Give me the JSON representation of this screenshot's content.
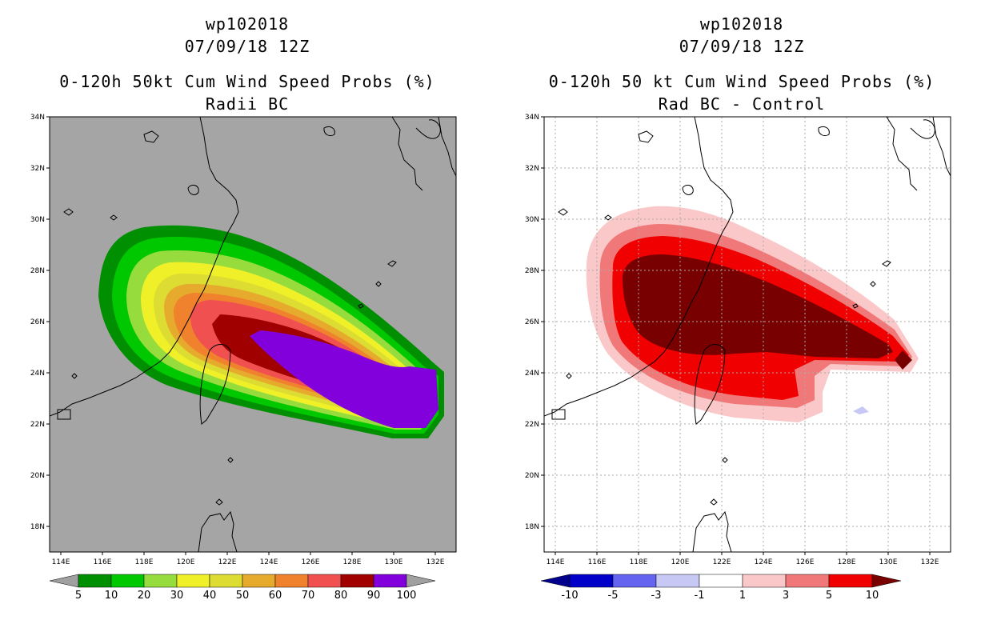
{
  "panels": [
    {
      "id": "left",
      "storm_id": "wp102018",
      "datetime": "07/09/18 12Z",
      "title": "0-120h 50kt Cum Wind Speed Probs (%)",
      "subtitle": "Radii BC",
      "lat_labels": [
        "34N",
        "32N",
        "30N",
        "28N",
        "26N",
        "24N",
        "22N",
        "20N",
        "18N"
      ],
      "lon_labels": [
        "114E",
        "116E",
        "118E",
        "120E",
        "122E",
        "124E",
        "126E",
        "128E",
        "130E",
        "132E"
      ],
      "colorbar": {
        "colors": [
          "#008f00",
          "#00c800",
          "#96dc3c",
          "#f0f028",
          "#dcdc32",
          "#e6aa2d",
          "#f0822d",
          "#f05050",
          "#a00000",
          "#8200dc"
        ],
        "labels": [
          "5",
          "10",
          "20",
          "30",
          "40",
          "50",
          "60",
          "70",
          "80",
          "90",
          "100"
        ],
        "end_low": "#a0a0a0",
        "end_high": "#a0a0a0"
      }
    },
    {
      "id": "right",
      "storm_id": "wp102018",
      "datetime": "07/09/18 12Z",
      "title": "0-120h 50 kt Cum Wind Speed Probs (%)",
      "subtitle": "Rad BC - Control",
      "lat_labels": [
        "34N",
        "32N",
        "30N",
        "28N",
        "26N",
        "24N",
        "22N",
        "20N",
        "18N"
      ],
      "lon_labels": [
        "114E",
        "116E",
        "118E",
        "120E",
        "122E",
        "124E",
        "126E",
        "128E",
        "130E",
        "132E"
      ],
      "colorbar": {
        "colors": [
          "#0000c8",
          "#6464f0",
          "#c8c8f5",
          "#ffffff",
          "#fac8c8",
          "#f07878",
          "#f00000"
        ],
        "labels": [
          "-10",
          "-5",
          "-3",
          "-1",
          "1",
          "3",
          "5",
          "10"
        ],
        "end_low": "#00008c",
        "end_high": "#780000"
      }
    }
  ]
}
